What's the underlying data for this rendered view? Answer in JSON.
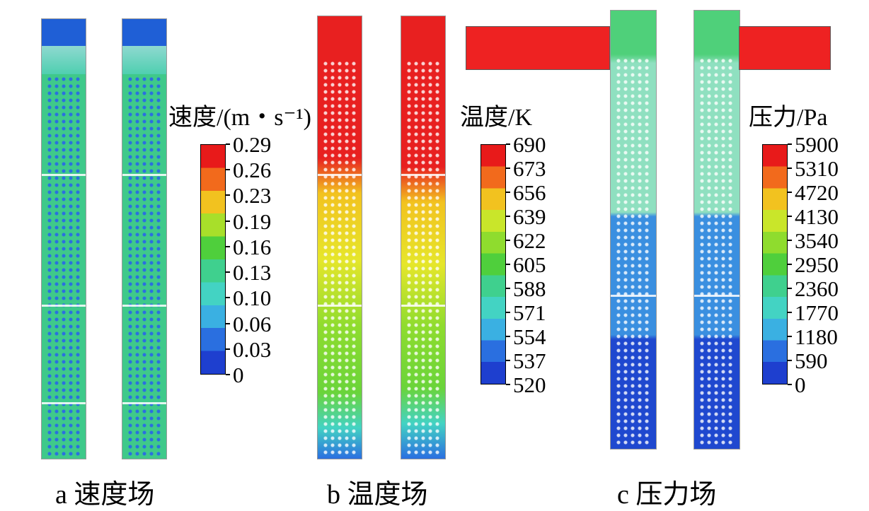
{
  "panels": [
    {
      "id": "a",
      "caption": "a 速度场",
      "legend_title": "速度/(m・s⁻¹)",
      "ticks": [
        "0.29",
        "0.26",
        "0.23",
        "0.19",
        "0.16",
        "0.13",
        "0.10",
        "0.06",
        "0.03",
        "0"
      ],
      "scale_colors": [
        "#e81a1a",
        "#f26a1c",
        "#f2c21f",
        "#a8df2a",
        "#4fcf3c",
        "#3fd08e",
        "#43d3c3",
        "#3ab0e2",
        "#2a6fe0",
        "#1e3fcf"
      ]
    },
    {
      "id": "b",
      "caption": "b 温度场",
      "legend_title": "温度/K",
      "ticks": [
        "690",
        "673",
        "656",
        "639",
        "622",
        "605",
        "588",
        "571",
        "554",
        "537",
        "520"
      ],
      "scale_colors": [
        "#e81a1a",
        "#f26a1c",
        "#f2c21f",
        "#c9e62a",
        "#8fdc2e",
        "#4fcf3c",
        "#3fd08e",
        "#43d3c3",
        "#3ab0e2",
        "#2a6fe0",
        "#1e3fcf"
      ]
    },
    {
      "id": "c",
      "caption": "c 压力场",
      "legend_title": "压力/Pa",
      "ticks": [
        "5900",
        "5310",
        "4720",
        "4130",
        "3540",
        "2950",
        "2360",
        "1770",
        "1180",
        "590",
        "0"
      ],
      "scale_colors": [
        "#e81a1a",
        "#f26a1c",
        "#f2c21f",
        "#c9e62a",
        "#8fdc2e",
        "#4fcf3c",
        "#3fd08e",
        "#43d3c3",
        "#3ab0e2",
        "#2a6fe0",
        "#1e3fcf"
      ]
    }
  ]
}
